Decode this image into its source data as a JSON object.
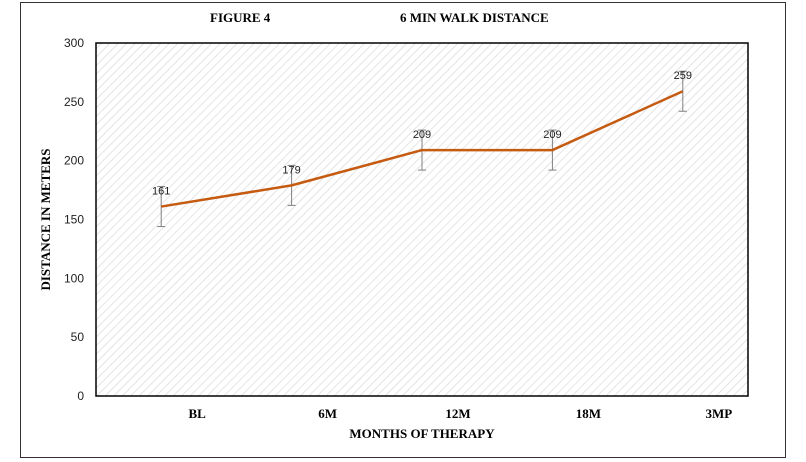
{
  "header": {
    "figure_label": "FIGURE 4",
    "title": "6 MIN WALK DISTANCE"
  },
  "colors": {
    "line": "#C55A11",
    "error_bar": "#7F7F7F",
    "hatch": "#D9D9D9",
    "axis": "#000000"
  },
  "chart_data": {
    "type": "line",
    "title": "6 MIN WALK DISTANCE",
    "xlabel": "MONTHS OF THERAPY",
    "ylabel": "DISTANCE IN METERS",
    "categories": [
      "BL",
      "6M",
      "12M",
      "18M",
      "3MP"
    ],
    "series": [
      {
        "values": [
          161,
          179,
          209,
          209,
          259
        ],
        "error": [
          17,
          17,
          17,
          17,
          17
        ]
      }
    ],
    "data_labels": [
      "161",
      "179",
      "209",
      "209",
      "259"
    ],
    "ylim": [
      0,
      300
    ],
    "yticks": [
      0,
      50,
      100,
      150,
      200,
      250,
      300
    ],
    "ytick_labels": [
      "0",
      "50",
      "100",
      "150",
      "200",
      "250",
      "300"
    ],
    "grid": false,
    "legend": "none",
    "background": "diagonal hatch"
  }
}
